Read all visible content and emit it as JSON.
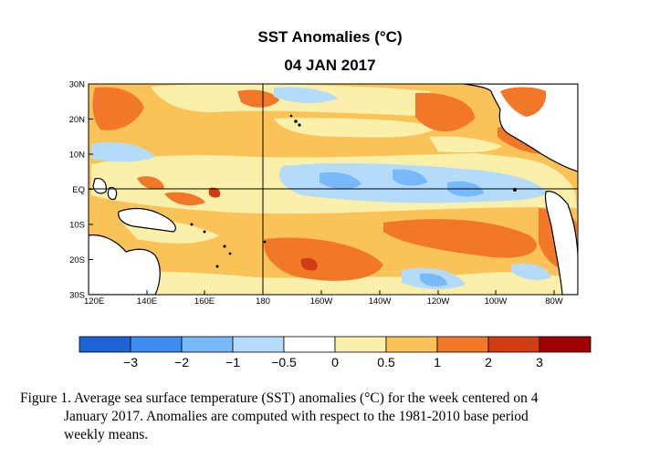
{
  "title": "SST Anomalies (°C)",
  "date": "04 JAN 2017",
  "lat_labels": [
    "30N",
    "20N",
    "10N",
    "EQ",
    "10S",
    "20S",
    "30S"
  ],
  "lon_labels": [
    "120E",
    "140E",
    "160E",
    "180",
    "160W",
    "140W",
    "120W",
    "100W",
    "80W"
  ],
  "colorbar": {
    "labels": [
      "−3",
      "−2",
      "−1",
      "−0.5",
      "0",
      "0.5",
      "1",
      "2",
      "3"
    ],
    "colors": [
      "#1e64d8",
      "#3c8cf0",
      "#78b9fa",
      "#b4dcfa",
      "#ffffff",
      "#faf0aa",
      "#fac35a",
      "#f07828",
      "#d23c14",
      "#a00000"
    ]
  },
  "map_colors": {
    "land": "#ffffff",
    "coast": "#000000",
    "weak_warm": "#faf0aa",
    "warm": "#fac35a",
    "strong_warm": "#f07828",
    "very_warm": "#d23c14",
    "weak_cool": "#b4dcfa",
    "cool": "#78b9fa",
    "strong_cool": "#3c8cf0"
  },
  "caption": {
    "line1": "Figure  1. Average sea surface temperature (SST) anomalies  (°C) for the week centered on 4",
    "line2": "January 2017.  Anomalies  are computed  with respect to the 1981-2010  base period",
    "line3": "weekly means."
  }
}
